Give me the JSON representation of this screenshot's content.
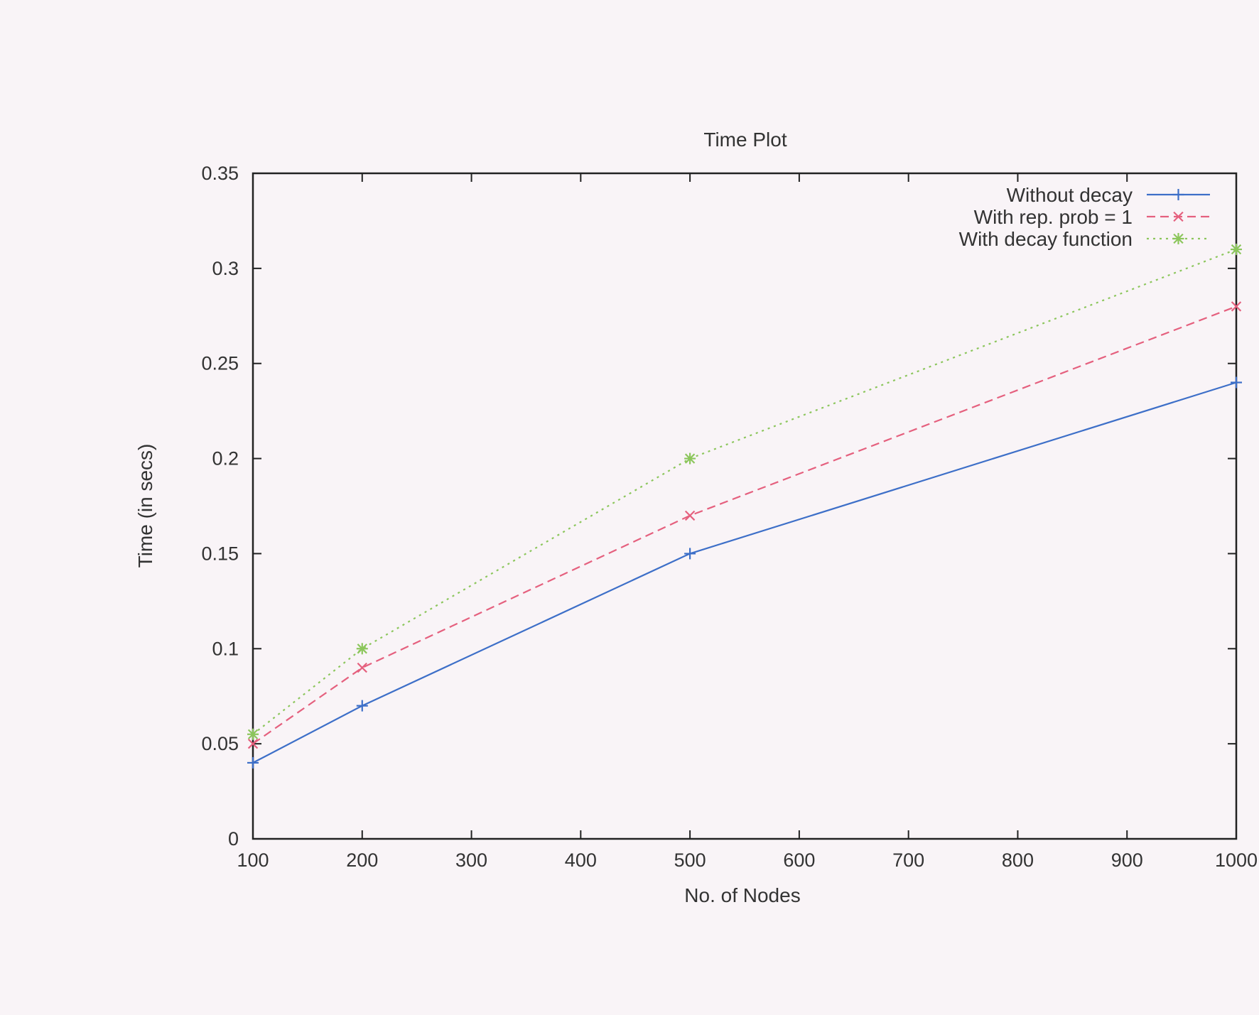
{
  "chart_data": {
    "type": "line",
    "title": "Time Plot",
    "xlabel": "No. of Nodes",
    "ylabel": "Time (in secs)",
    "xlim": [
      100,
      1000
    ],
    "ylim": [
      0,
      0.35
    ],
    "xticks": [
      "100",
      "200",
      "300",
      "400",
      "500",
      "600",
      "700",
      "800",
      "900",
      "1000"
    ],
    "yticks": [
      "0",
      "0.05",
      "0.1",
      "0.15",
      "0.2",
      "0.25",
      "0.3",
      "0.35"
    ],
    "grid": false,
    "legend_position": "top-right",
    "x": [
      100,
      200,
      500,
      1000
    ],
    "series": [
      {
        "name": "Without decay",
        "values": [
          0.04,
          0.07,
          0.15,
          0.24
        ],
        "color": "#3d6fc8",
        "dash": "solid",
        "marker": "plus"
      },
      {
        "name": "With rep. prob = 1",
        "values": [
          0.05,
          0.09,
          0.17,
          0.28
        ],
        "color": "#e5607e",
        "dash": "dashed",
        "marker": "cross"
      },
      {
        "name": "With decay function",
        "values": [
          0.055,
          0.1,
          0.2,
          0.31
        ],
        "color": "#8cc65c",
        "dash": "dotted",
        "marker": "star"
      }
    ]
  }
}
